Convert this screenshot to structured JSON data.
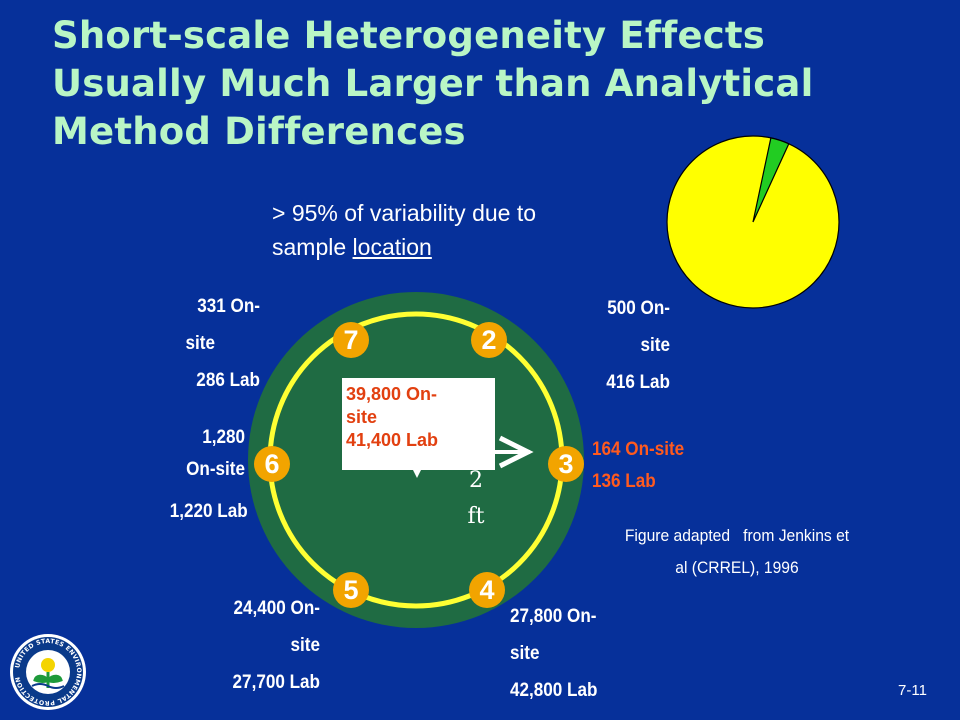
{
  "title": {
    "line1": "Short-scale Heterogeneity Effects",
    "line2": "Usually Much Larger than Analytical",
    "line3": "Method Differences"
  },
  "variability": {
    "prefix": "> 95% of variability due to",
    "line2_plain": "sample ",
    "line2_underlined": "location"
  },
  "pie": {
    "location_share_percent": 96.5,
    "colors": {
      "major": "#ffff00",
      "minor": "#22cc22",
      "outline": "#000000"
    }
  },
  "ring": {
    "numbers": {
      "n2": "2",
      "n3": "3",
      "n4": "4",
      "n5": "5",
      "n6": "6",
      "n7": "7"
    },
    "colors": {
      "disk": "#1f6b43",
      "circle": "#ffff33",
      "marker": "#f2a400"
    }
  },
  "center": {
    "line1": "39,800 On-",
    "line2": "site",
    "line3": "41,400 Lab"
  },
  "distance": {
    "value": "2",
    "unit": "ft"
  },
  "samples": {
    "s7": {
      "line1": "331 On-",
      "line2": "site",
      "line3": "286 Lab"
    },
    "s2": {
      "line1": "500 On-",
      "line2": "site",
      "line3": "416 Lab"
    },
    "s6": {
      "line1": "1,280",
      "line2": "On-site",
      "line3": "1,220 Lab"
    },
    "s3": {
      "line1": "164 On-site",
      "line2": "136 Lab"
    },
    "s5": {
      "line1": "24,400 On-",
      "line2": "site",
      "line3": "27,700 Lab"
    },
    "s4": {
      "line1": "27,800 On-",
      "line2": "site",
      "line3": "42,800 Lab"
    }
  },
  "credit": {
    "line1": "Figure adapted   from Jenkins et",
    "line2": "al (CRREL), 1996"
  },
  "slide_number": "7-11",
  "logo": {
    "text": "UNITED STATES ENVIRONMENTAL PROTECTION AGENCY",
    "colors": {
      "ring": "#0a3a8a",
      "inner": "#ffffff",
      "sun": "#f4d400",
      "plant": "#1e9a3a"
    }
  },
  "colors": {
    "background": "#06309a",
    "title": "#b9f6c5",
    "highlight": "#ff5a1e"
  }
}
